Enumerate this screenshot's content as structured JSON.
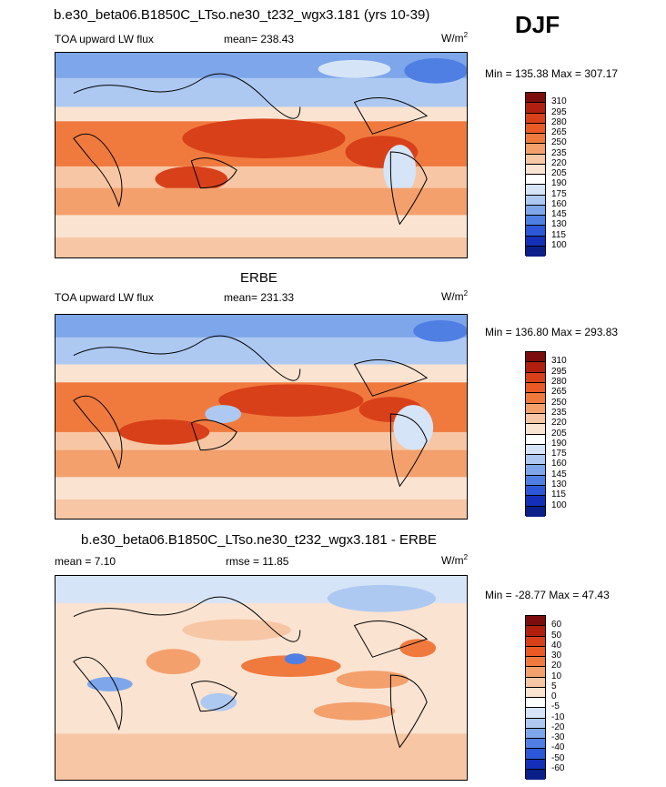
{
  "season": "DJF",
  "panels": [
    {
      "title": "b.e30_beta06.B1850C_LTso.ne30_t232_wgx3.181 (yrs 10-39)",
      "left_label": "TOA upward LW flux",
      "center_label": "mean= 238.43",
      "units_text": "W/m",
      "units_sup": "2",
      "minmax": "Min = 135.38 Max = 307.17",
      "colorbar": {
        "labels": [
          "310",
          "295",
          "280",
          "265",
          "250",
          "235",
          "220",
          "205",
          "190",
          "175",
          "160",
          "145",
          "130",
          "115",
          "100"
        ],
        "colors": [
          "#7b0d0d",
          "#b1200f",
          "#d8401a",
          "#ea5a24",
          "#f07a3e",
          "#f3a06c",
          "#f7c6a4",
          "#fbe3d1",
          "#ffffff",
          "#d6e4f7",
          "#adc9f2",
          "#7ea6ea",
          "#4f7fe3",
          "#2b57d8",
          "#1530b8",
          "#0a1f8a"
        ]
      }
    },
    {
      "title": "ERBE",
      "left_label": "TOA upward LW flux",
      "center_label": "mean= 231.33",
      "units_text": "W/m",
      "units_sup": "2",
      "minmax": "Min = 136.80 Max = 293.83",
      "colorbar": {
        "labels": [
          "310",
          "295",
          "280",
          "265",
          "250",
          "235",
          "220",
          "205",
          "190",
          "175",
          "160",
          "145",
          "130",
          "115",
          "100"
        ],
        "colors": [
          "#7b0d0d",
          "#b1200f",
          "#d8401a",
          "#ea5a24",
          "#f07a3e",
          "#f3a06c",
          "#f7c6a4",
          "#fbe3d1",
          "#ffffff",
          "#d6e4f7",
          "#adc9f2",
          "#7ea6ea",
          "#4f7fe3",
          "#2b57d8",
          "#1530b8",
          "#0a1f8a"
        ]
      }
    },
    {
      "title": "b.e30_beta06.B1850C_LTso.ne30_t232_wgx3.181 - ERBE",
      "left_label": "mean =   7.10",
      "center_label": "rmse =  11.85",
      "units_text": "W/m",
      "units_sup": "2",
      "minmax": "Min = -28.77 Max =  47.43",
      "colorbar": {
        "labels": [
          "60",
          "50",
          "40",
          "30",
          "20",
          "10",
          "5",
          "0",
          "-5",
          "-10",
          "-20",
          "-30",
          "-40",
          "-50",
          "-60"
        ],
        "colors": [
          "#7b0d0d",
          "#b1200f",
          "#d8401a",
          "#ea5a24",
          "#f07a3e",
          "#f3a06c",
          "#f7c6a4",
          "#fbe3d1",
          "#ffffff",
          "#d6e4f7",
          "#adc9f2",
          "#7ea6ea",
          "#4f7fe3",
          "#2b57d8",
          "#1530b8",
          "#0a1f8a"
        ]
      }
    }
  ]
}
